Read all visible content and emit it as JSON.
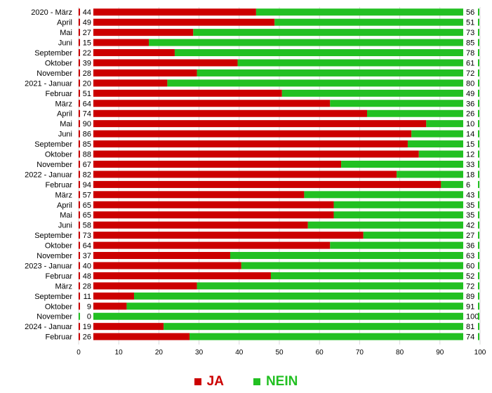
{
  "colors": {
    "ja": "#cc0000",
    "nein": "#22c022",
    "axis": "#000000",
    "grid": "#d9d9d9"
  },
  "legend": {
    "ja_label": "JA",
    "nein_label": "NEIN"
  },
  "chart_data": {
    "type": "bar",
    "orientation": "horizontal",
    "stacked": true,
    "categories": [
      "2020 - März",
      "April",
      "Mai",
      "Juni",
      "September",
      "Oktober",
      "November",
      "2021 - Januar",
      "Februar",
      "März",
      "April",
      "Mai",
      "Juni",
      "September",
      "Oktober",
      "November",
      "2022 - Januar",
      "Februar",
      "März",
      "April",
      "Mai",
      "Juni",
      "September",
      "Oktober",
      "November",
      "2023 - Januar",
      "Februar",
      "März",
      "September",
      "Oktober",
      "November",
      "2024 - Januar",
      "Februar"
    ],
    "series": [
      {
        "name": "JA",
        "color": "#cc0000",
        "values": [
          44,
          49,
          27,
          15,
          22,
          39,
          28,
          20,
          51,
          64,
          74,
          90,
          86,
          85,
          88,
          67,
          82,
          94,
          57,
          65,
          65,
          58,
          73,
          64,
          37,
          40,
          48,
          28,
          11,
          9,
          0,
          19,
          26
        ]
      },
      {
        "name": "NEIN",
        "color": "#22c022",
        "values": [
          56,
          51,
          73,
          85,
          78,
          61,
          72,
          80,
          49,
          36,
          26,
          10,
          14,
          15,
          12,
          33,
          18,
          6,
          43,
          35,
          35,
          42,
          27,
          36,
          63,
          60,
          52,
          72,
          89,
          91,
          100,
          81,
          74
        ]
      }
    ],
    "xlim": [
      0,
      100
    ],
    "xticks": [
      "0",
      "10",
      "20",
      "30",
      "40",
      "50",
      "60",
      "70",
      "80",
      "90",
      "100"
    ],
    "grid": true,
    "legend_position": "bottom-center"
  }
}
